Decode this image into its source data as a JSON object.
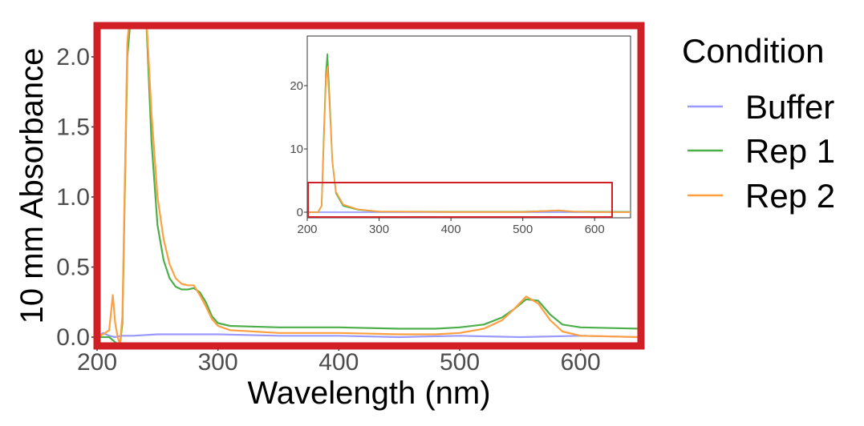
{
  "chart_data": [
    {
      "type": "line",
      "panel": "main",
      "xlabel": "Wavelength (nm)",
      "ylabel": "10 mm Absorbance",
      "xlim": [
        200,
        650
      ],
      "ylim": [
        0,
        2.2
      ],
      "xticks": [
        "200",
        "300",
        "400",
        "500",
        "600"
      ],
      "yticks": [
        "0.0",
        "0.5",
        "1.0",
        "1.5",
        "2.0"
      ],
      "grid": false,
      "highlight_border_color": "#d11f26",
      "series": [
        {
          "name": "Buffer",
          "color": "#9999ff",
          "x": [
            200,
            205,
            210,
            215,
            220,
            230,
            250,
            300,
            350,
            400,
            450,
            500,
            550,
            600,
            650
          ],
          "y": [
            0.0,
            0.03,
            0.01,
            0.0,
            0.01,
            0.01,
            0.02,
            0.02,
            0.01,
            0.01,
            0.0,
            0.01,
            0.0,
            0.01,
            0.0
          ]
        },
        {
          "name": "Rep 1",
          "color": "#4daf4a",
          "x": [
            200,
            210,
            217,
            219,
            221,
            225,
            230,
            240,
            245,
            250,
            255,
            260,
            265,
            270,
            275,
            280,
            285,
            290,
            295,
            300,
            310,
            350,
            400,
            450,
            480,
            500,
            520,
            535,
            545,
            555,
            565,
            575,
            585,
            600,
            650
          ],
          "y": [
            0.0,
            0.0,
            -0.05,
            -0.05,
            0.1,
            2.0,
            2.5,
            2.4,
            1.4,
            0.8,
            0.55,
            0.42,
            0.36,
            0.34,
            0.34,
            0.35,
            0.32,
            0.25,
            0.15,
            0.1,
            0.08,
            0.07,
            0.07,
            0.06,
            0.06,
            0.07,
            0.09,
            0.14,
            0.2,
            0.27,
            0.26,
            0.16,
            0.09,
            0.07,
            0.06
          ]
        },
        {
          "name": "Rep 2",
          "color": "#ff9f40",
          "x": [
            200,
            205,
            210,
            213,
            215,
            217,
            219,
            221,
            225,
            230,
            240,
            245,
            250,
            255,
            260,
            265,
            270,
            275,
            280,
            285,
            290,
            295,
            300,
            310,
            350,
            400,
            450,
            480,
            500,
            520,
            535,
            545,
            555,
            565,
            575,
            585,
            600,
            650
          ],
          "y": [
            0.0,
            0.02,
            0.05,
            0.3,
            0.1,
            0.0,
            -0.05,
            0.15,
            2.1,
            2.6,
            2.4,
            1.6,
            1.0,
            0.7,
            0.52,
            0.42,
            0.38,
            0.37,
            0.37,
            0.3,
            0.22,
            0.13,
            0.08,
            0.05,
            0.03,
            0.03,
            0.02,
            0.02,
            0.03,
            0.06,
            0.12,
            0.2,
            0.29,
            0.24,
            0.12,
            0.04,
            0.01,
            0.0
          ]
        }
      ]
    },
    {
      "type": "line",
      "panel": "inset",
      "xlim": [
        200,
        650
      ],
      "ylim": [
        -1,
        28
      ],
      "xticks": [
        "200",
        "300",
        "400",
        "500",
        "600"
      ],
      "yticks": [
        "0",
        "10",
        "20"
      ],
      "grid": false,
      "series": [
        {
          "name": "Buffer",
          "color": "#9999ff",
          "x": [
            200,
            650
          ],
          "y": [
            0.0,
            0.0
          ]
        },
        {
          "name": "Rep 1",
          "color": "#4daf4a",
          "x": [
            200,
            215,
            220,
            223,
            226,
            228,
            231,
            235,
            240,
            250,
            270,
            300,
            400,
            500,
            550,
            570,
            600,
            650
          ],
          "y": [
            0.0,
            0.0,
            1.0,
            12.0,
            22.0,
            25.0,
            18.0,
            8.0,
            3.0,
            1.0,
            0.4,
            0.1,
            0.07,
            0.07,
            0.27,
            0.1,
            0.07,
            0.06
          ]
        },
        {
          "name": "Rep 2",
          "color": "#ff9f40",
          "x": [
            200,
            215,
            220,
            223,
            226,
            228,
            231,
            235,
            240,
            250,
            270,
            300,
            400,
            500,
            550,
            570,
            600,
            650
          ],
          "y": [
            0.0,
            0.0,
            1.0,
            11.0,
            21.0,
            23.0,
            17.0,
            8.0,
            3.2,
            1.2,
            0.45,
            0.1,
            0.03,
            0.03,
            0.29,
            0.1,
            0.01,
            0.0
          ]
        }
      ]
    }
  ],
  "legend": {
    "title": "Condition",
    "items": [
      {
        "label": "Buffer",
        "color": "#9999ff"
      },
      {
        "label": "Rep 1",
        "color": "#4daf4a"
      },
      {
        "label": "Rep 2",
        "color": "#ff9f40"
      }
    ]
  }
}
